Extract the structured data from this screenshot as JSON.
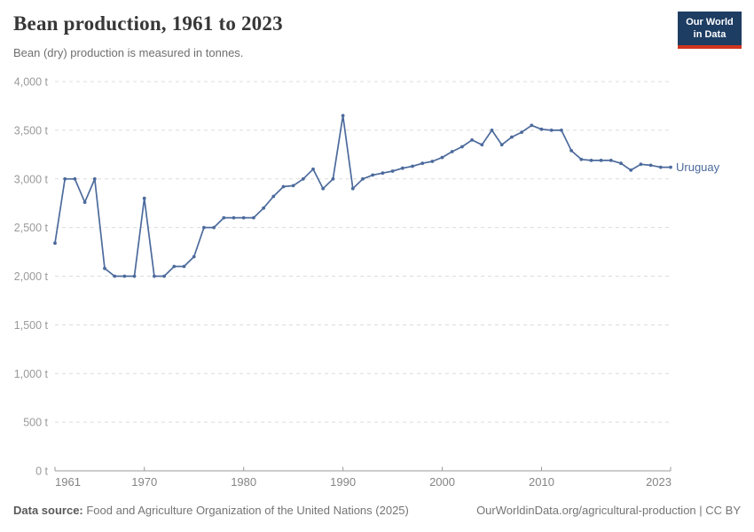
{
  "header": {
    "title": "Bean production, 1961 to 2023",
    "subtitle": "Bean (dry) production is measured in tonnes.",
    "logo": {
      "line1": "Our World",
      "line2": "in Data"
    }
  },
  "footer": {
    "datasource_label": "Data source:",
    "datasource_text": " Food and Agriculture Organization of the United Nations (2025)",
    "link": "OurWorldinData.org/agricultural-production | CC BY"
  },
  "colors": {
    "line": "#4c6a9c",
    "series_label": "#4c6a9c",
    "grid": "#dcdcdc",
    "axis": "#9a9a9a",
    "y_tick_label": "#9a9a9a",
    "x_tick_label": "#858585",
    "logo_bg": "#1d3d63",
    "logo_accent": "#d1341f",
    "title": "#373737",
    "subtitle": "#6e6e6e"
  },
  "chart_data": {
    "type": "line",
    "title": "Bean production, 1961 to 2023",
    "subtitle": "Bean (dry) production is measured in tonnes.",
    "xlabel": "",
    "ylabel": "tonnes",
    "xlim": [
      1961,
      2023
    ],
    "ylim": [
      0,
      4000
    ],
    "grid": "horizontal-dashed",
    "legend_position": "end-of-line-label",
    "x_ticks": [
      {
        "v": 1961,
        "label": "1961"
      },
      {
        "v": 1970,
        "label": "1970"
      },
      {
        "v": 1980,
        "label": "1980"
      },
      {
        "v": 1990,
        "label": "1990"
      },
      {
        "v": 2000,
        "label": "2000"
      },
      {
        "v": 2010,
        "label": "2010"
      },
      {
        "v": 2023,
        "label": "2023"
      }
    ],
    "y_ticks": [
      {
        "v": 0,
        "label": "0 t"
      },
      {
        "v": 500,
        "label": "500 t"
      },
      {
        "v": 1000,
        "label": "1,000 t"
      },
      {
        "v": 1500,
        "label": "1,500 t"
      },
      {
        "v": 2000,
        "label": "2,000 t"
      },
      {
        "v": 2500,
        "label": "2,500 t"
      },
      {
        "v": 3000,
        "label": "3,000 t"
      },
      {
        "v": 3500,
        "label": "3,500 t"
      },
      {
        "v": 4000,
        "label": "4,000 t"
      }
    ],
    "series": [
      {
        "name": "Uruguay",
        "x": [
          1961,
          1962,
          1963,
          1964,
          1965,
          1966,
          1967,
          1968,
          1969,
          1970,
          1971,
          1972,
          1973,
          1974,
          1975,
          1976,
          1977,
          1978,
          1979,
          1980,
          1981,
          1982,
          1983,
          1984,
          1985,
          1986,
          1987,
          1988,
          1989,
          1990,
          1991,
          1992,
          1993,
          1994,
          1995,
          1996,
          1997,
          1998,
          1999,
          2000,
          2001,
          2002,
          2003,
          2004,
          2005,
          2006,
          2007,
          2008,
          2009,
          2010,
          2011,
          2012,
          2013,
          2014,
          2015,
          2016,
          2017,
          2018,
          2019,
          2020,
          2021,
          2022,
          2023
        ],
        "values": [
          2340,
          3000,
          3000,
          2760,
          3000,
          2080,
          2000,
          2000,
          2000,
          2800,
          2000,
          2000,
          2100,
          2100,
          2200,
          2500,
          2500,
          2600,
          2600,
          2600,
          2600,
          2700,
          2820,
          2920,
          2930,
          3000,
          3100,
          2900,
          3000,
          3650,
          2900,
          3000,
          3040,
          3060,
          3080,
          3110,
          3130,
          3160,
          3180,
          3220,
          3280,
          3330,
          3400,
          3350,
          3500,
          3350,
          3430,
          3480,
          3550,
          3510,
          3500,
          3500,
          3290,
          3200,
          3190,
          3190,
          3190,
          3160,
          3090,
          3150,
          3140,
          3120,
          3120
        ]
      }
    ]
  }
}
